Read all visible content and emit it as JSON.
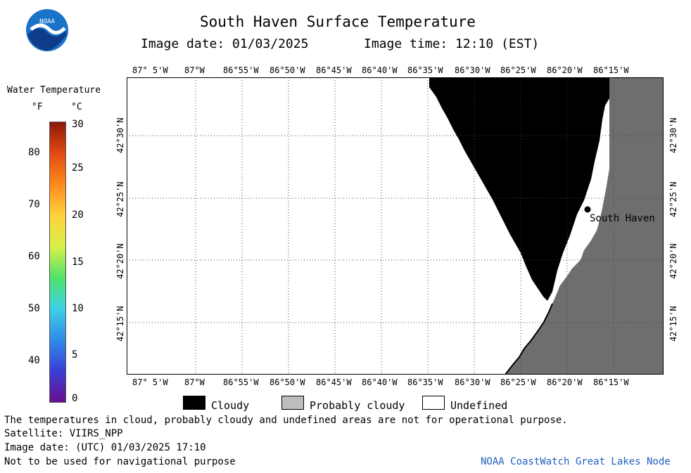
{
  "header": {
    "title": "South Haven Surface Temperature",
    "image_date_label": "Image date: 01/03/2025",
    "image_time_label": "Image time: 12:10 (EST)",
    "logo_text": "NOAA"
  },
  "legend": {
    "title": "Water Temperature",
    "unit_f": "°F",
    "unit_c": "°C",
    "f_ticks": [
      "80",
      "70",
      "60",
      "50",
      "40"
    ],
    "c_ticks": [
      "30",
      "25",
      "20",
      "15",
      "10",
      "5",
      "0"
    ],
    "colors": [
      "#6a0f8c",
      "#3a3fd6",
      "#2e8be8",
      "#3fd0e6",
      "#4fe36a",
      "#d8f04a",
      "#ffd23c",
      "#ff8a1e",
      "#e04a12",
      "#8c1a08"
    ]
  },
  "map": {
    "lon_labels": [
      "87° 5'W",
      "87°W",
      "86°55'W",
      "86°50'W",
      "86°45'W",
      "86°40'W",
      "86°35'W",
      "86°30'W",
      "86°25'W",
      "86°20'W",
      "86°15'W"
    ],
    "lat_labels": [
      "42°30'N",
      "42°25'N",
      "42°20'N",
      "42°15'N"
    ],
    "city_label": "South Haven",
    "colors": {
      "cloud": "#000000",
      "land": "#6e6e6e",
      "undefined": "#ffffff"
    }
  },
  "key": {
    "cloudy": "Cloudy",
    "probably_cloudy": "Probably cloudy",
    "undefined": "Undefined",
    "probably_cloudy_color": "#bdbdbd"
  },
  "footer": {
    "disclaimer": "The temperatures in cloud, probably cloudy and undefined areas are not for operational purpose.",
    "satellite": "Satellite: VIIRS_NPP",
    "utc_date": "Image date: (UTC) 01/03/2025  17:10",
    "nav_warning": "Not to be used for navigational purpose",
    "credit": "NOAA CoastWatch Great Lakes Node"
  }
}
